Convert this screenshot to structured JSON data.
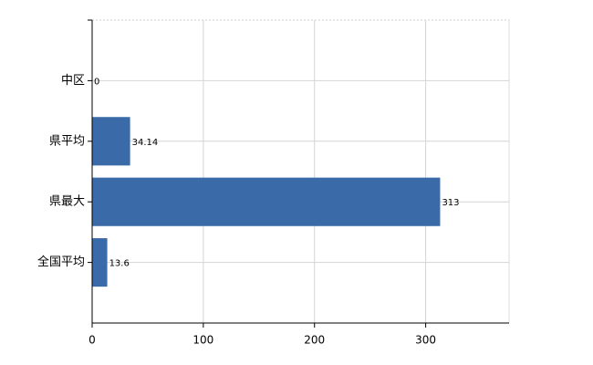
{
  "chart_data": {
    "type": "bar",
    "orientation": "horizontal",
    "categories": [
      "中区",
      "県平均",
      "県最大",
      "全国平均"
    ],
    "values": [
      0,
      34.14,
      313,
      13.6
    ],
    "color": "#3a6aa8",
    "xlim": [
      0,
      375
    ],
    "xticks": [
      0,
      100,
      200,
      300
    ],
    "grid": true,
    "data_labels": true
  }
}
